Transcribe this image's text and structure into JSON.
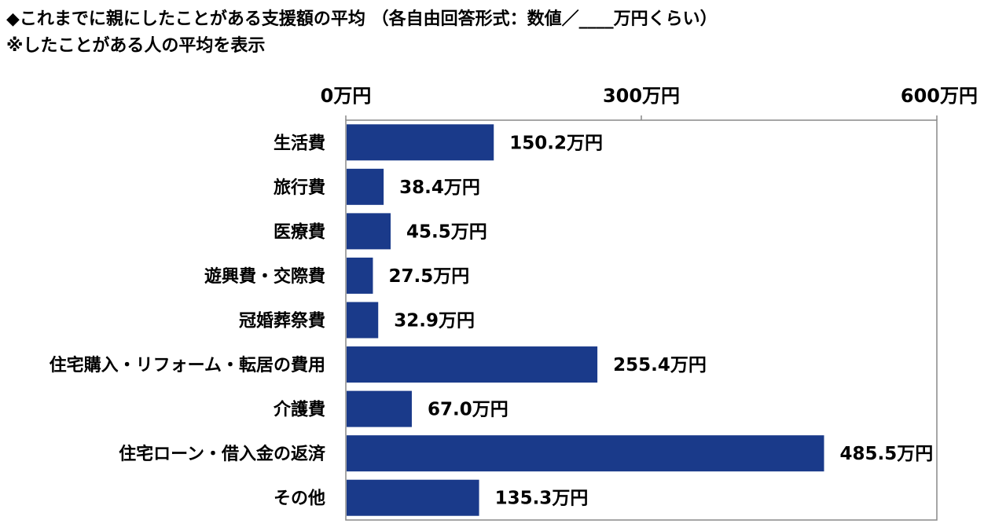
{
  "header": {
    "title": "◆これまでに親にしたことがある支援額の平均 （各自由回答形式：数値／____万円くらい）",
    "subtitle": "※したことがある人の平均を表示"
  },
  "chart_data": {
    "type": "bar",
    "orientation": "horizontal",
    "unit": "万円",
    "categories": [
      "生活費",
      "旅行費",
      "医療費",
      "遊興費・交際費",
      "冠婚葬祭費",
      "住宅購入・リフォーム・転居の費用",
      "介護費",
      "住宅ローン・借入金の返済",
      "その他"
    ],
    "values": [
      150.2,
      38.4,
      45.5,
      27.5,
      32.9,
      255.4,
      67.0,
      485.5,
      135.3
    ],
    "value_labels": [
      "150.2万円",
      "38.4万円",
      "45.5万円",
      "27.5万円",
      "32.9万円",
      "255.4万円",
      "67.0万円",
      "485.5万円",
      "135.3万円"
    ],
    "xlim": [
      0,
      600
    ],
    "ticks": [
      0,
      300,
      600
    ],
    "tick_labels": [
      "0万円",
      "300万円",
      "600万円"
    ],
    "tick_position": "top",
    "bar_color": "#1a3a8a",
    "grid": false
  }
}
